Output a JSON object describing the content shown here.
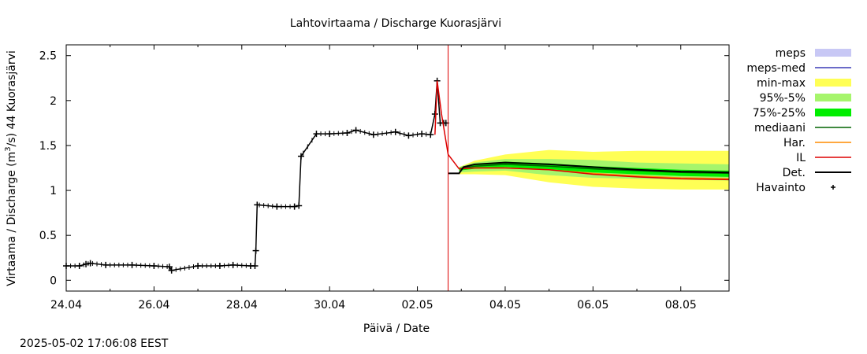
{
  "footer": {
    "timestamp": "2025-05-02 17:06:08 EEST"
  },
  "chart_data": {
    "type": "line",
    "title": "Lahtovirtaama / Discharge  Kuorasjärvi",
    "xlabel": "Päivä / Date",
    "ylabel_pre": "Virtaama / Discharge (m",
    "ylabel_sup": "3",
    "ylabel_post": "/s)  44 Kuorasjärvi",
    "x_unit": "days since 24.04",
    "xlim": [
      0,
      15.1
    ],
    "ylim": [
      -0.12,
      2.62
    ],
    "xticks": [
      {
        "x": 0,
        "label": "24.04"
      },
      {
        "x": 2,
        "label": "26.04"
      },
      {
        "x": 4,
        "label": "28.04"
      },
      {
        "x": 6,
        "label": "30.04"
      },
      {
        "x": 8,
        "label": "02.05"
      },
      {
        "x": 10,
        "label": "04.05"
      },
      {
        "x": 12,
        "label": "06.05"
      },
      {
        "x": 14,
        "label": "08.05"
      }
    ],
    "yticks": [
      {
        "y": 0,
        "label": "0"
      },
      {
        "y": 0.5,
        "label": "0.5"
      },
      {
        "y": 1,
        "label": "1"
      },
      {
        "y": 1.5,
        "label": "1.5"
      },
      {
        "y": 2,
        "label": "2"
      },
      {
        "y": 2.5,
        "label": "2.5"
      }
    ],
    "now_line_x": 8.7,
    "legend_position": "right",
    "legend": [
      {
        "label": "meps",
        "type": "band",
        "color": "#c8c8f5"
      },
      {
        "label": "meps-med",
        "type": "line",
        "color": "#3a3ab5"
      },
      {
        "label": "min-max",
        "type": "band",
        "color": "#ffff55"
      },
      {
        "label": "95%-5%",
        "type": "band",
        "color": "#a6f56c"
      },
      {
        "label": "75%-25%",
        "type": "band",
        "color": "#00ee00"
      },
      {
        "label": "mediaani",
        "type": "line",
        "color": "#006400"
      },
      {
        "label": "Har.",
        "type": "line",
        "color": "#ff8c00"
      },
      {
        "label": "IL",
        "type": "line",
        "color": "#dd0000"
      },
      {
        "label": "Det.",
        "type": "line",
        "color": "#000000"
      },
      {
        "label": "Havainto",
        "type": "marker",
        "color": "#000000"
      }
    ],
    "bands": [
      {
        "name": "min-max",
        "color": "#ffff55",
        "x": [
          8.95,
          9.3,
          10.0,
          11.0,
          12.0,
          13.0,
          14.0,
          15.1
        ],
        "low": [
          1.18,
          1.18,
          1.17,
          1.09,
          1.04,
          1.02,
          1.01,
          1.01
        ],
        "high": [
          1.26,
          1.33,
          1.4,
          1.45,
          1.43,
          1.44,
          1.44,
          1.44
        ]
      },
      {
        "name": "95%-5%",
        "color": "#a6f56c",
        "x": [
          8.95,
          9.3,
          10.0,
          11.0,
          12.0,
          13.0,
          14.0,
          15.1
        ],
        "low": [
          1.2,
          1.21,
          1.22,
          1.17,
          1.14,
          1.13,
          1.12,
          1.11
        ],
        "high": [
          1.26,
          1.31,
          1.35,
          1.35,
          1.34,
          1.31,
          1.3,
          1.29
        ]
      },
      {
        "name": "75%-25%",
        "color": "#00ee00",
        "x": [
          8.95,
          9.3,
          10.0,
          11.0,
          12.0,
          13.0,
          14.0,
          15.1
        ],
        "low": [
          1.22,
          1.24,
          1.26,
          1.23,
          1.2,
          1.18,
          1.16,
          1.15
        ],
        "high": [
          1.25,
          1.29,
          1.32,
          1.3,
          1.27,
          1.25,
          1.23,
          1.22
        ]
      }
    ],
    "lines": [
      {
        "name": "mediaani",
        "color": "#006400",
        "width": 1.5,
        "x": [
          8.95,
          9.3,
          10.0,
          11.0,
          12.0,
          13.0,
          14.0,
          15.1
        ],
        "y": [
          1.24,
          1.27,
          1.29,
          1.27,
          1.24,
          1.22,
          1.2,
          1.19
        ]
      },
      {
        "name": "Har.",
        "color": "#ff8c00",
        "width": 1.5,
        "x": [
          8.95,
          9.3,
          10.0,
          11.0,
          12.0,
          13.0,
          14.0,
          15.1
        ],
        "y": [
          1.24,
          1.25,
          1.25,
          1.23,
          1.19,
          1.16,
          1.14,
          1.13
        ]
      },
      {
        "name": "IL",
        "color": "#dd0000",
        "width": 1.5,
        "x": [
          8.4,
          8.45,
          8.55,
          8.7,
          8.95,
          9.3,
          10.0,
          11.0,
          12.0,
          13.0,
          14.0,
          15.1
        ],
        "y": [
          1.62,
          2.22,
          1.85,
          1.4,
          1.24,
          1.25,
          1.25,
          1.23,
          1.18,
          1.15,
          1.13,
          1.12
        ]
      },
      {
        "name": "Det.",
        "color": "#000000",
        "width": 2,
        "x": [
          8.7,
          8.95,
          9.05,
          9.3,
          10.0,
          11.0,
          12.0,
          13.0,
          14.0,
          15.1
        ],
        "y": [
          1.19,
          1.19,
          1.26,
          1.29,
          1.31,
          1.29,
          1.26,
          1.23,
          1.21,
          1.2
        ]
      }
    ],
    "observations": {
      "name": "Havainto",
      "color": "#000000",
      "x": [
        0,
        0.3,
        0.45,
        0.55,
        0.9,
        1.5,
        2.0,
        2.35,
        2.4,
        3.0,
        3.5,
        3.8,
        4.2,
        4.3,
        4.32,
        4.35,
        4.8,
        5.2,
        5.3,
        5.35,
        5.7,
        6.0,
        6.4,
        6.6,
        7.0,
        7.5,
        7.8,
        8.1,
        8.3,
        8.4,
        8.45,
        8.52,
        8.6,
        8.65
      ],
      "y": [
        0.16,
        0.16,
        0.18,
        0.19,
        0.17,
        0.17,
        0.16,
        0.15,
        0.11,
        0.16,
        0.16,
        0.17,
        0.16,
        0.16,
        0.33,
        0.84,
        0.82,
        0.82,
        0.83,
        1.38,
        1.63,
        1.63,
        1.64,
        1.67,
        1.62,
        1.65,
        1.61,
        1.63,
        1.62,
        1.85,
        2.22,
        1.75,
        1.75,
        1.75
      ]
    }
  }
}
